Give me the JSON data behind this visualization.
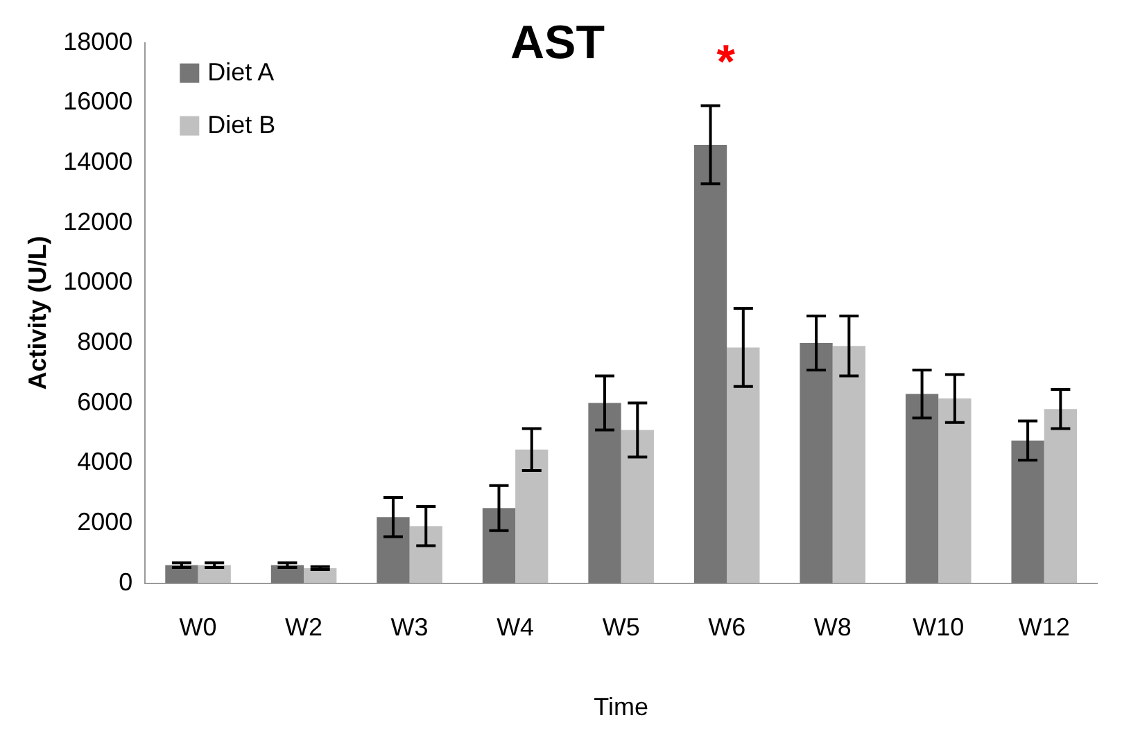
{
  "chart_data": {
    "type": "bar",
    "title": "AST",
    "xlabel": "Time",
    "ylabel": "Activity (U/L)",
    "categories": [
      "W0",
      "W2",
      "W3",
      "W4",
      "W5",
      "W6",
      "W8",
      "W10",
      "W12"
    ],
    "series": [
      {
        "name": "Diet A",
        "color": "#767676",
        "values": [
          600,
          600,
          2200,
          2500,
          6000,
          14600,
          8000,
          6300,
          4750
        ],
        "errors": [
          80,
          80,
          650,
          750,
          900,
          1300,
          900,
          800,
          650
        ]
      },
      {
        "name": "Diet B",
        "color": "#c0c0c0",
        "values": [
          600,
          500,
          1900,
          4450,
          5100,
          7850,
          7900,
          6150,
          5800
        ],
        "errors": [
          80,
          50,
          650,
          700,
          900,
          1300,
          1000,
          800,
          650
        ]
      }
    ],
    "ylim": [
      0,
      18000
    ],
    "yticks": [
      0,
      2000,
      4000,
      6000,
      8000,
      10000,
      12000,
      14000,
      16000,
      18000
    ],
    "grid": false,
    "legend": "top left",
    "annotations": [
      "*"
    ]
  }
}
